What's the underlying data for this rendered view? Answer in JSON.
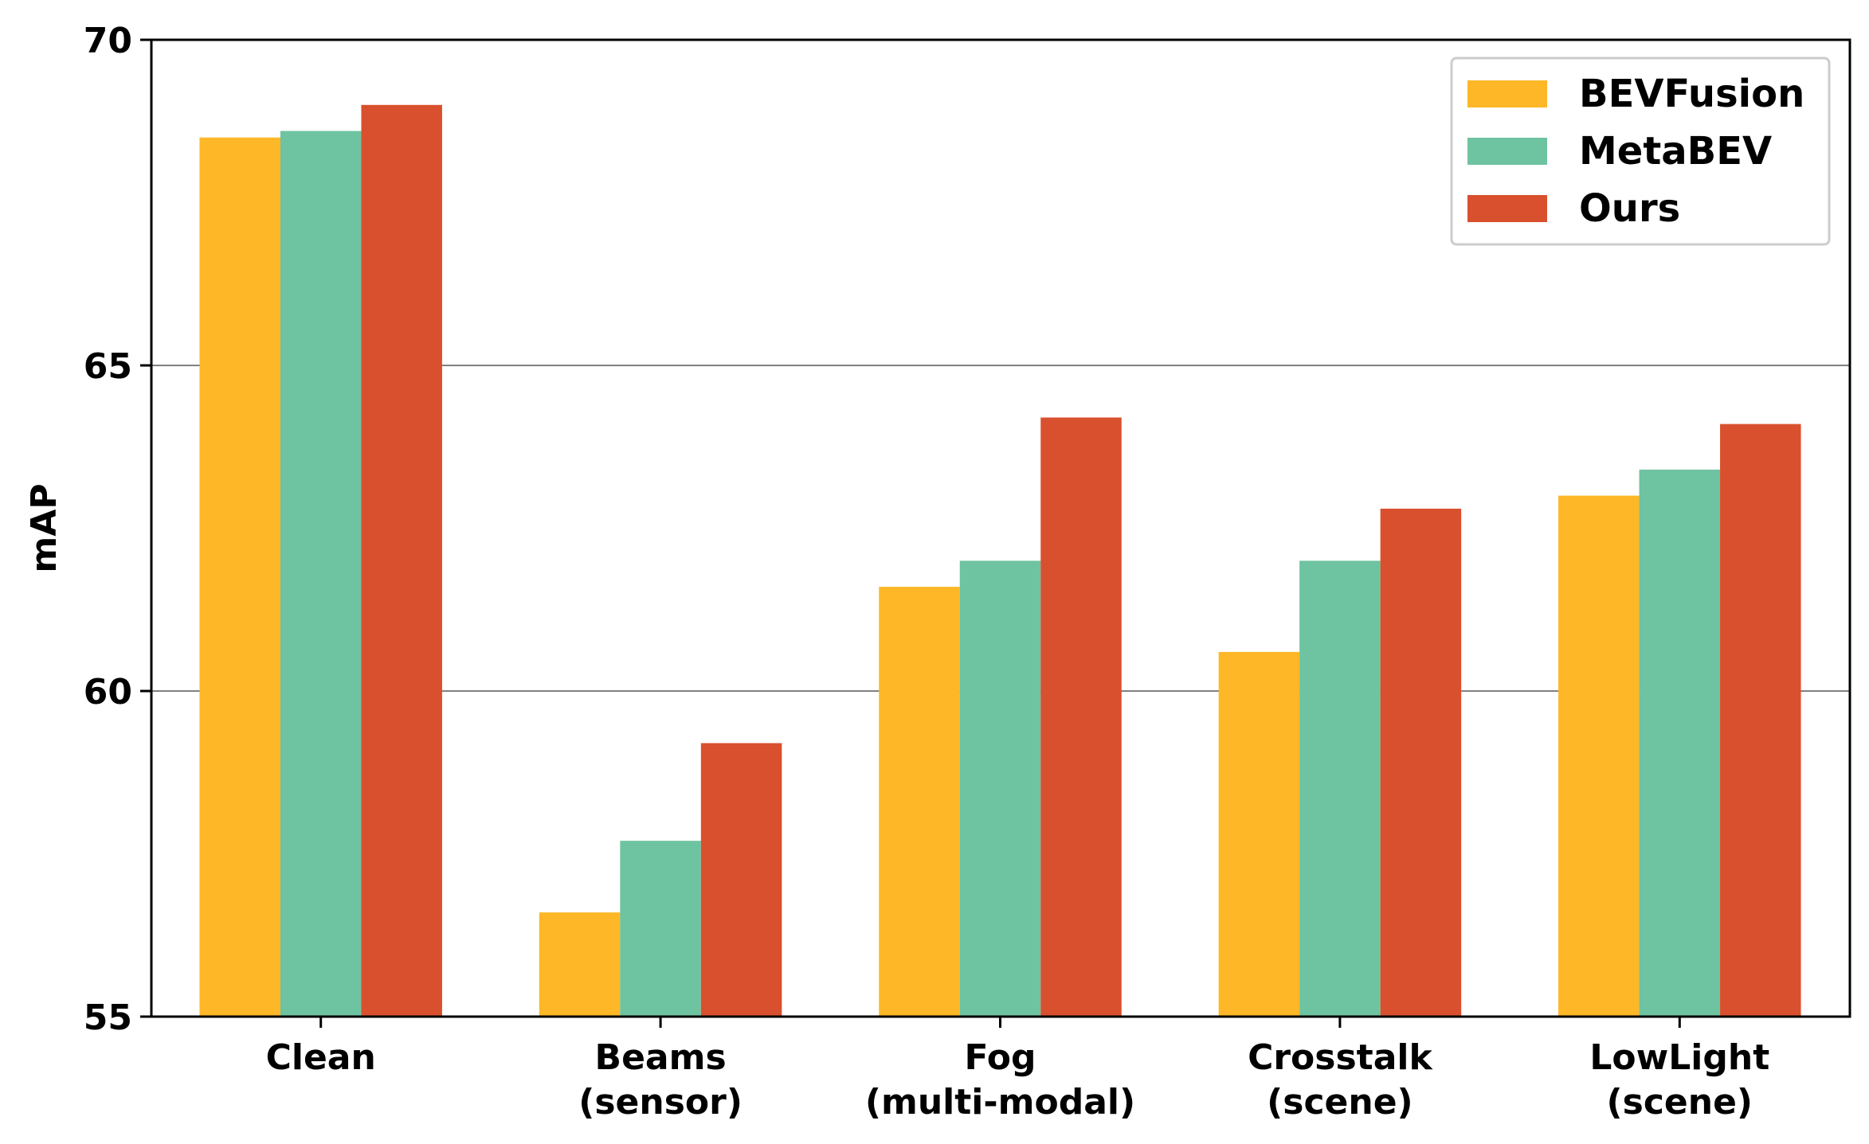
{
  "chart_data": {
    "type": "bar",
    "title": "",
    "xlabel": "",
    "ylabel": "mAP",
    "ylim": [
      55,
      70
    ],
    "yticks": [
      55,
      60,
      65,
      70
    ],
    "grid": "horizontal",
    "legend_position": "top-right",
    "categories": [
      [
        "Clean"
      ],
      [
        "Beams",
        "(sensor)"
      ],
      [
        "Fog",
        "(multi-modal)"
      ],
      [
        "Crosstalk",
        "(scene)"
      ],
      [
        "LowLight",
        "(scene)"
      ]
    ],
    "series": [
      {
        "name": "BEVFusion",
        "color": "#FDB727",
        "values": [
          68.5,
          56.6,
          61.6,
          60.6,
          63.0
        ]
      },
      {
        "name": "MetaBEV",
        "color": "#6EC3A0",
        "values": [
          68.6,
          57.7,
          62.0,
          62.0,
          63.4
        ]
      },
      {
        "name": "Ours",
        "color": "#D9502E",
        "values": [
          69.0,
          59.2,
          64.2,
          62.8,
          64.1
        ]
      }
    ]
  }
}
